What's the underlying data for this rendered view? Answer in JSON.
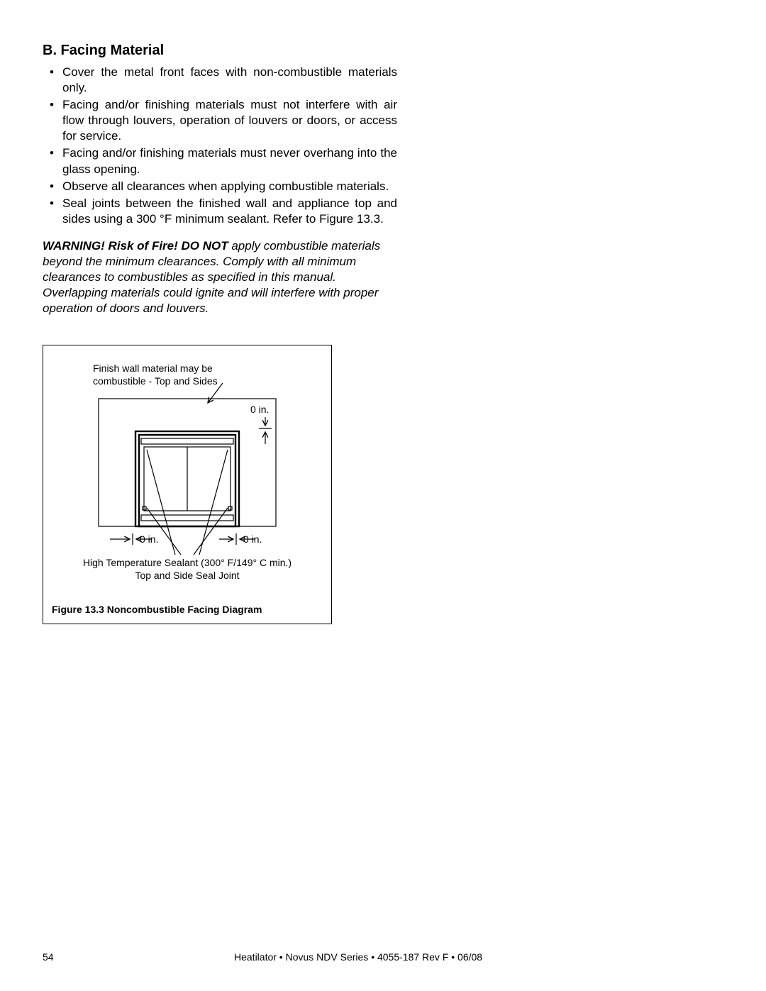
{
  "heading": "B. Facing Material",
  "bullets": [
    "Cover the metal front faces with non-combustible materials only.",
    "Facing and/or finishing materials must not interfere with air flow through louvers, operation of louvers or doors, or access for service.",
    "Facing and/or finishing materials must never overhang into the glass opening.",
    "Observe all clearances when applying combustible materials.",
    "Seal joints between the finished wall and appliance top and sides using a 300 °F minimum sealant. Refer to Figure 13.3."
  ],
  "warning": {
    "lead": "WARNING! Risk of Fire! DO NOT",
    "rest": " apply combustible materials beyond the minimum clearances. Comply with all minimum clearances to combustibles as specified in this manual. Overlapping materials could ignite and will interfere with proper operation of doors and louvers."
  },
  "diagram": {
    "type": "technical-diagram",
    "label_top": "Finish wall material may be",
    "label_top2": "combustible - Top and Sides",
    "dim_top": "0 in.",
    "dim_left": "0 in.",
    "dim_right": "0 in.",
    "sealant_line1": "High Temperature Sealant (300° F/149° C min.)",
    "sealant_line2": "Top and Side Seal Joint",
    "colors": {
      "stroke": "#000000",
      "bg": "#ffffff",
      "text": "#000000"
    },
    "line_width_outer": 1.2,
    "line_width_heavy": 2.4,
    "font_size_label": 14
  },
  "figure_caption": "Figure 13.3  Noncombustible Facing Diagram",
  "footer": {
    "page": "54",
    "doc": "Heatilator • Novus NDV Series • 4055-187 Rev F • 06/08"
  }
}
